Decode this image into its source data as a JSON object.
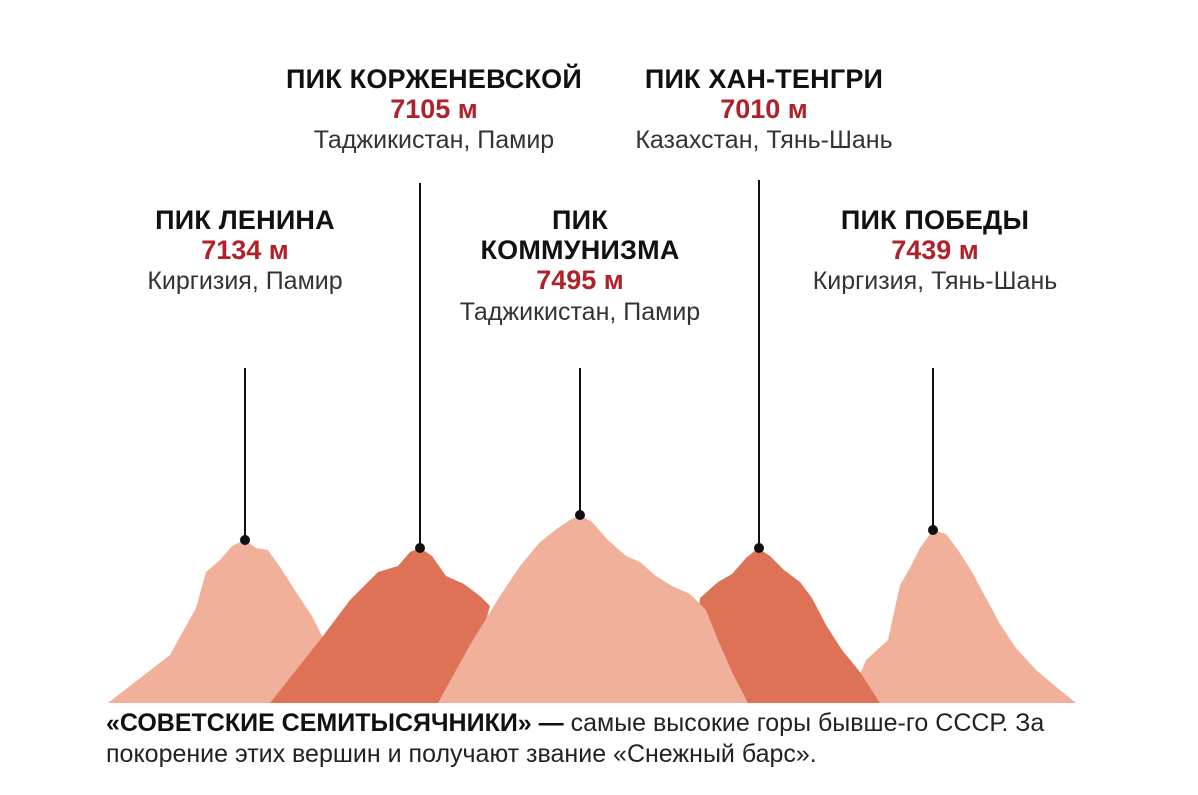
{
  "colors": {
    "light": "#f0b09a",
    "dark": "#de7256",
    "height_red": "#b0222a",
    "line": "#111111"
  },
  "peaks": [
    {
      "id": "lenin",
      "name": "ПИК ЛЕНИНА",
      "height": "7134 м",
      "region": "Киргизия, Памир",
      "shade": "light"
    },
    {
      "id": "korzhenevskoy",
      "name": "ПИК КОРЖЕНЕВСКОЙ",
      "height": "7105 м",
      "region": "Таджикистан, Памир",
      "shade": "dark"
    },
    {
      "id": "kommunizma",
      "name_line1": "ПИК",
      "name_line2": "КОММУНИЗМА",
      "height": "7495 м",
      "region": "Таджикистан, Памир",
      "shade": "light"
    },
    {
      "id": "khan-tengri",
      "name": "ПИК ХАН-ТЕНГРИ",
      "height": "7010 м",
      "region": "Казахстан, Тянь-Шань",
      "shade": "dark"
    },
    {
      "id": "pobedy",
      "name": "ПИК ПОБЕДЫ",
      "height": "7439 м",
      "region": "Киргизия, Тянь-Шань",
      "shade": "light"
    }
  ],
  "caption": {
    "lead": "«СОВЕТСКИЕ СЕМИТЫСЯЧНИКИ» —",
    "text": " самые высокие горы бывше-го СССР. За покорение этих вершин и получают звание «Снежный барс»."
  }
}
